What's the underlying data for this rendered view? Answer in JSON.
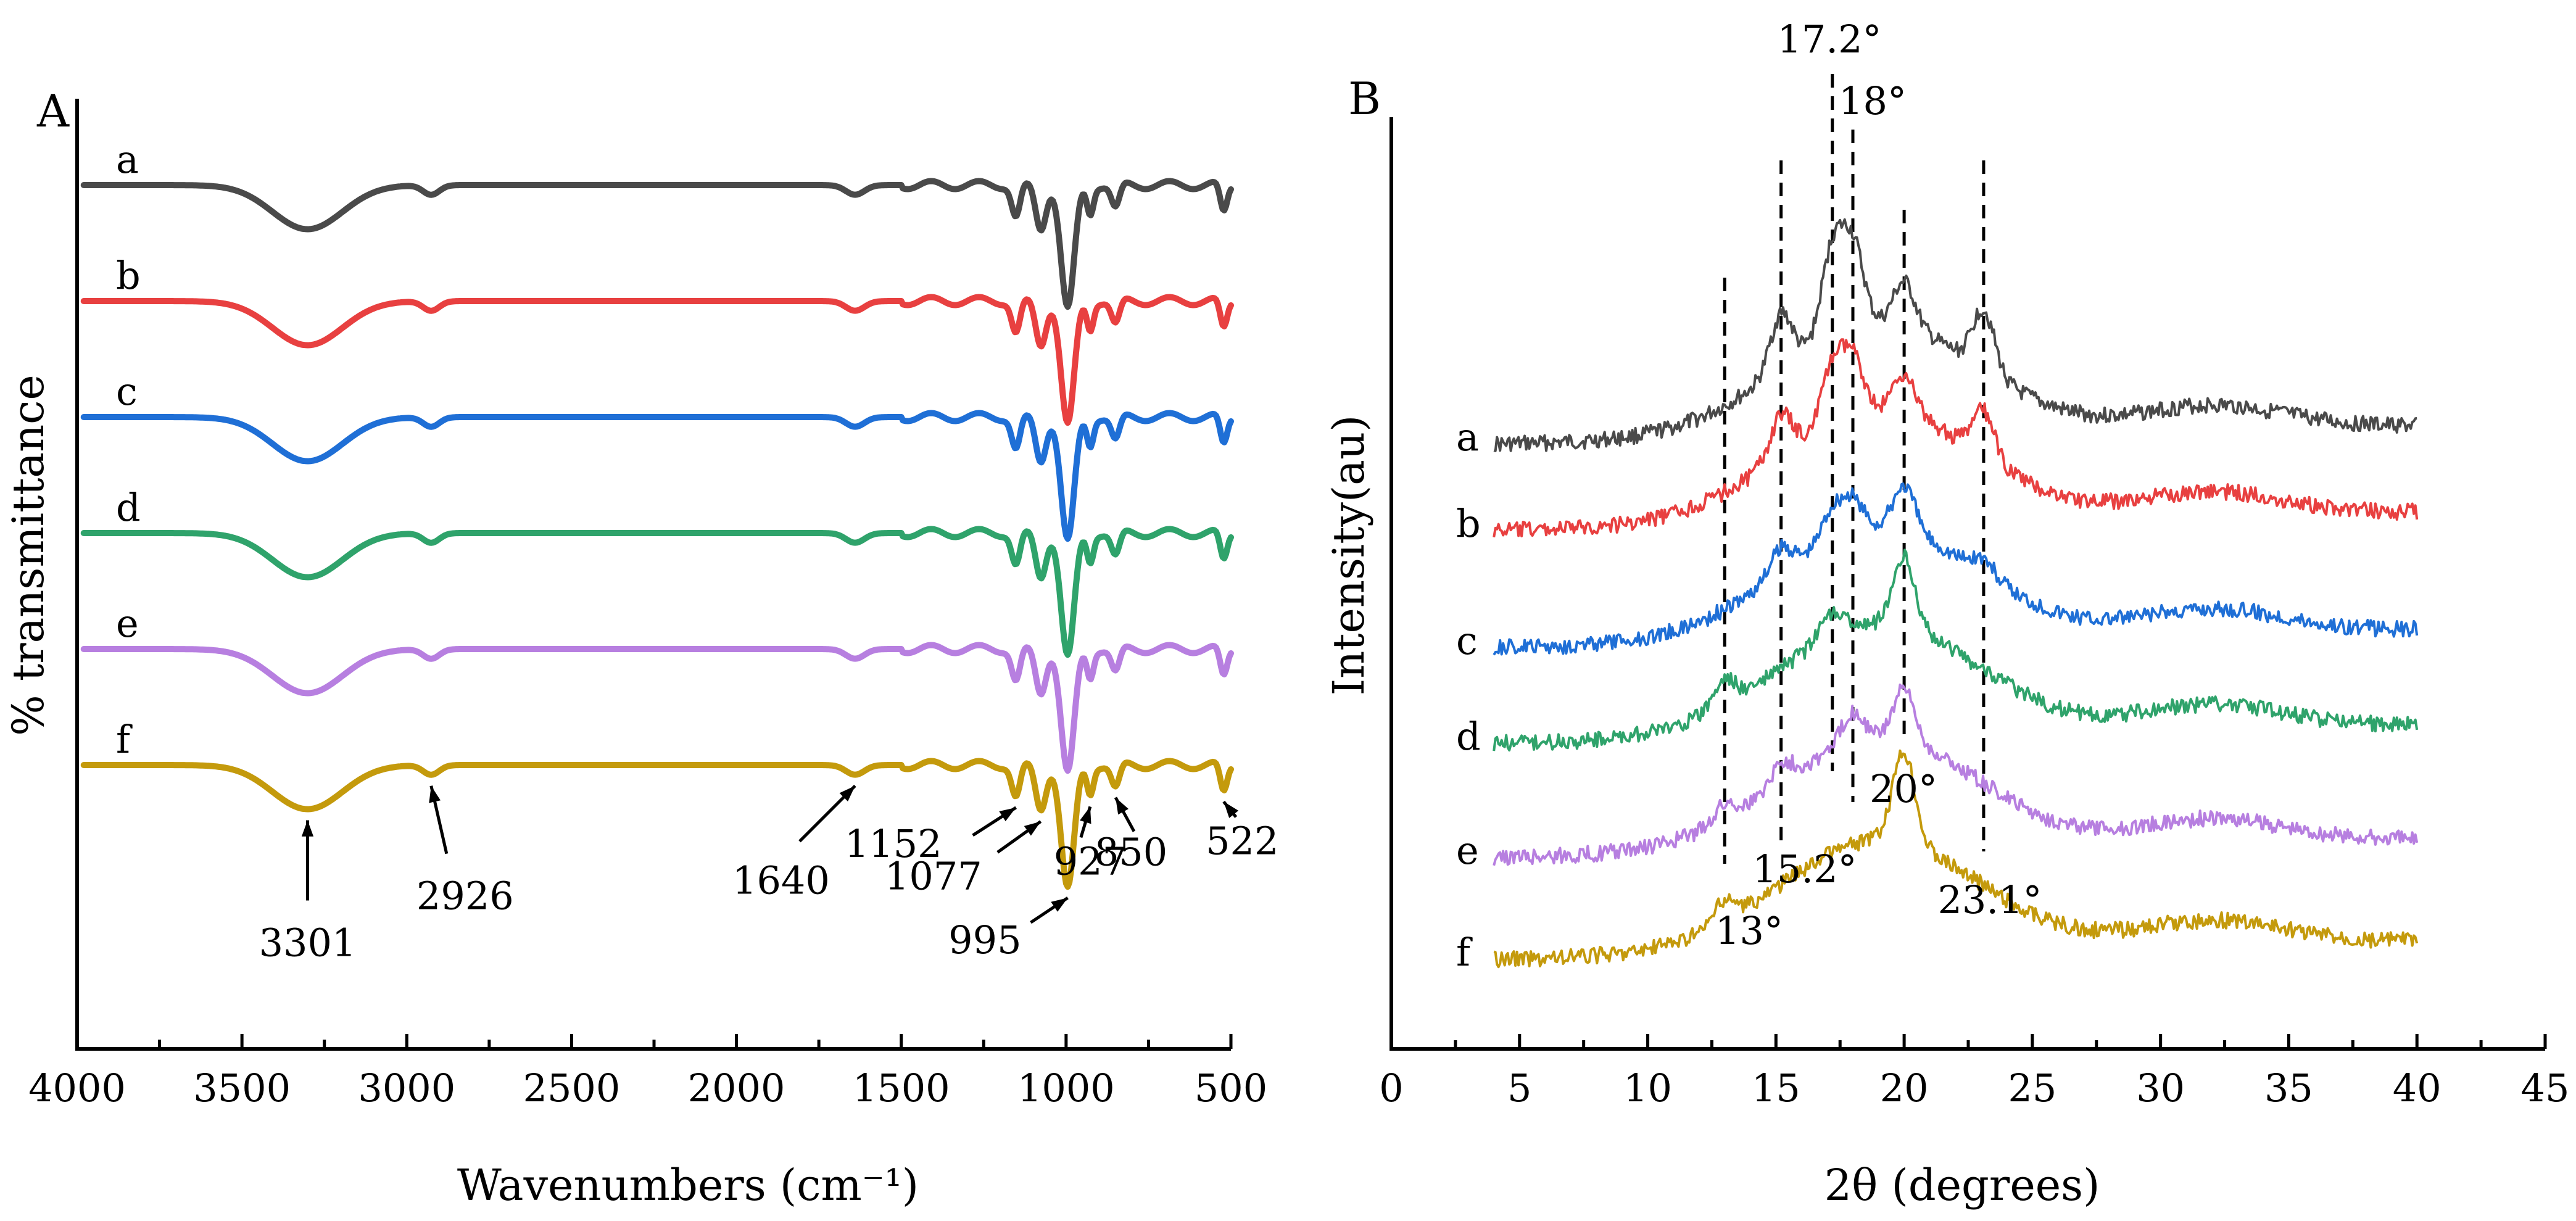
{
  "chart_data": [
    {
      "panel": "A",
      "type": "line",
      "xlabel": "Wavenumbers (cm⁻¹)",
      "ylabel": "% transmittance",
      "xlim": [
        4000,
        500
      ],
      "x_reversed": true,
      "xticks": [
        4000,
        3500,
        3000,
        2500,
        2000,
        1500,
        1000,
        500
      ],
      "series": [
        {
          "name": "a",
          "color": "#4a4a4a"
        },
        {
          "name": "b",
          "color": "#e84040"
        },
        {
          "name": "c",
          "color": "#1f6fd6"
        },
        {
          "name": "d",
          "color": "#2fa36b"
        },
        {
          "name": "e",
          "color": "#b77fe0"
        },
        {
          "name": "f",
          "color": "#c49a0c"
        }
      ],
      "peaks": [
        {
          "x": 3301,
          "depth": 0.55,
          "width": 150
        },
        {
          "x": 2926,
          "depth": 0.12,
          "width": 35
        },
        {
          "x": 1640,
          "depth": 0.12,
          "width": 40
        },
        {
          "x": 1152,
          "depth": 0.4,
          "width": 18
        },
        {
          "x": 1077,
          "depth": 0.55,
          "width": 22
        },
        {
          "x": 995,
          "depth": 1.55,
          "width": 28
        },
        {
          "x": 927,
          "depth": 0.35,
          "width": 14
        },
        {
          "x": 850,
          "depth": 0.3,
          "width": 18
        },
        {
          "x": 522,
          "depth": 0.35,
          "width": 15
        }
      ],
      "annotations": [
        {
          "label": "3301",
          "x": 3301
        },
        {
          "label": "2926",
          "x": 2926
        },
        {
          "label": "1640",
          "x": 1640
        },
        {
          "label": "1152",
          "x": 1152
        },
        {
          "label": "1077",
          "x": 1077
        },
        {
          "label": "995",
          "x": 995
        },
        {
          "label": "927",
          "x": 927
        },
        {
          "label": "850",
          "x": 850
        },
        {
          "label": "522",
          "x": 522
        }
      ]
    },
    {
      "panel": "B",
      "type": "line",
      "xlabel": "2θ (degrees)",
      "ylabel": "Intensity(au)",
      "xlim": [
        0,
        45
      ],
      "xticks": [
        0,
        5,
        10,
        15,
        20,
        25,
        30,
        35,
        40,
        45
      ],
      "series": [
        {
          "name": "a",
          "color": "#4a4a4a",
          "peaks": [
            [
              15.2,
              0.55
            ],
            [
              17.2,
              0.85
            ],
            [
              18,
              0.8
            ],
            [
              20,
              0.45
            ],
            [
              23.1,
              0.6
            ]
          ]
        },
        {
          "name": "b",
          "color": "#e84040",
          "peaks": [
            [
              15.2,
              0.4
            ],
            [
              17.2,
              0.55
            ],
            [
              18,
              0.55
            ],
            [
              20,
              0.4
            ],
            [
              23.1,
              0.45
            ]
          ]
        },
        {
          "name": "c",
          "color": "#1f6fd6",
          "peaks": [
            [
              15.2,
              0.25
            ],
            [
              17.2,
              0.3
            ],
            [
              18,
              0.3
            ],
            [
              20,
              0.45
            ],
            [
              23.1,
              0.15
            ]
          ]
        },
        {
          "name": "d",
          "color": "#2fa36b",
          "peaks": [
            [
              13,
              0.25
            ],
            [
              17.2,
              0.25
            ],
            [
              20,
              0.7
            ]
          ]
        },
        {
          "name": "e",
          "color": "#b77fe0",
          "peaks": [
            [
              13,
              0.15
            ],
            [
              15.2,
              0.2
            ],
            [
              18,
              0.3
            ],
            [
              20,
              0.5
            ]
          ]
        },
        {
          "name": "f",
          "color": "#c49a0c",
          "peaks": [
            [
              13,
              0.2
            ],
            [
              20,
              0.9
            ]
          ]
        }
      ],
      "reference_lines": [
        13,
        15.2,
        17.2,
        18,
        20,
        23.1
      ],
      "annotations": [
        {
          "label": "17.2°",
          "x": 17.2
        },
        {
          "label": "18°",
          "x": 18
        },
        {
          "label": "20°",
          "x": 20
        },
        {
          "label": "15.2°",
          "x": 15.2
        },
        {
          "label": "23.1°",
          "x": 23.1
        },
        {
          "label": "13°",
          "x": 13
        }
      ]
    }
  ]
}
